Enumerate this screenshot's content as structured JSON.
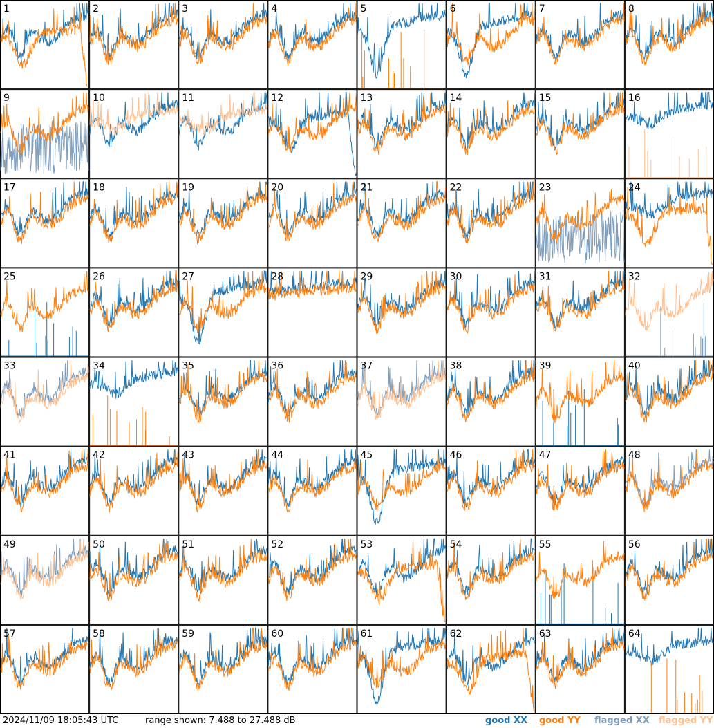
{
  "chart_data": {
    "type": "line",
    "layout": "8x8 grid of small-multiple spectra, one panel per input",
    "panel_labels": [
      "1",
      "2",
      "3",
      "4",
      "5",
      "6",
      "7",
      "8",
      "9",
      "10",
      "11",
      "12",
      "13",
      "14",
      "15",
      "16",
      "17",
      "18",
      "19",
      "20",
      "21",
      "22",
      "23",
      "24",
      "25",
      "26",
      "27",
      "28",
      "29",
      "30",
      "31",
      "32",
      "33",
      "34",
      "35",
      "36",
      "37",
      "38",
      "39",
      "40",
      "41",
      "42",
      "43",
      "44",
      "45",
      "46",
      "47",
      "48",
      "49",
      "50",
      "51",
      "52",
      "53",
      "54",
      "55",
      "56",
      "57",
      "58",
      "59",
      "60",
      "61",
      "62",
      "63",
      "64"
    ],
    "ylim": [
      7.488,
      27.488
    ],
    "yunit": "dB",
    "grid": false,
    "legend_position": "bottom-right",
    "series_styles": [
      {
        "name": "good XX",
        "color": "#1f77b4"
      },
      {
        "name": "good YY",
        "color": "#ff7f0e"
      },
      {
        "name": "flagged XX",
        "color": "#7f9fbf"
      },
      {
        "name": "flagged YY",
        "color": "#ffbf8f"
      }
    ],
    "panel_shapes": {
      "default": {
        "xx": "bandpass",
        "yy": "bandpass"
      },
      "1": {
        "xx": "bandpass",
        "yy": "rolloff"
      },
      "5": {
        "xx": "deepdip",
        "yy": "spikes"
      },
      "6": {
        "xx": "deepdip",
        "yy": "bandpass"
      },
      "9": {
        "xx": "flagged-noise",
        "yy": "bandpass"
      },
      "10": {
        "xx": "bandpass",
        "yy": "flagged-smooth"
      },
      "11": {
        "xx": "bandpass",
        "yy": "flagged-smooth"
      },
      "12": {
        "xx": "rolloff",
        "yy": "bandpass"
      },
      "16": {
        "xx": "smooth",
        "yy": "flagged-spikes"
      },
      "23": {
        "xx": "flagged-noise",
        "yy": "bandpass"
      },
      "24": {
        "xx": "smooth",
        "yy": "rolloff"
      },
      "25": {
        "xx": "spikes",
        "yy": "bandpass"
      },
      "27": {
        "xx": "deepdip",
        "yy": "bandpass"
      },
      "28": {
        "xx": "flat",
        "yy": "flat"
      },
      "32": {
        "xx": "flagged-spikes",
        "yy": "flagged-bandpass"
      },
      "33": {
        "xx": "flagged-bandpass",
        "yy": "flagged-bandpass"
      },
      "34": {
        "xx": "smooth",
        "yy": "spikes"
      },
      "37": {
        "xx": "flagged-bandpass",
        "yy": "flagged-bandpass"
      },
      "39": {
        "xx": "spikes",
        "yy": "bandpass"
      },
      "45": {
        "xx": "deepdip",
        "yy": "bandpass"
      },
      "48": {
        "xx": "flagged-bandpass",
        "yy": "bandpass"
      },
      "49": {
        "xx": "flagged-bandpass",
        "yy": "flagged-bandpass"
      },
      "53": {
        "xx": "bandpass",
        "yy": "rolloff"
      },
      "55": {
        "xx": "spikes",
        "yy": "bandpass"
      },
      "61": {
        "xx": "deepdip",
        "yy": "bandpass"
      },
      "62": {
        "xx": "bandpass",
        "yy": "rolloff"
      },
      "64": {
        "xx": "smooth",
        "yy": "spikes"
      }
    }
  },
  "footer": {
    "timestamp": "2024/11/09 18:05:43 UTC",
    "range_text": "range shown: 7.488 to 27.488 dB",
    "legend": [
      "good XX",
      "good YY",
      "flagged XX",
      "flagged YY"
    ]
  }
}
